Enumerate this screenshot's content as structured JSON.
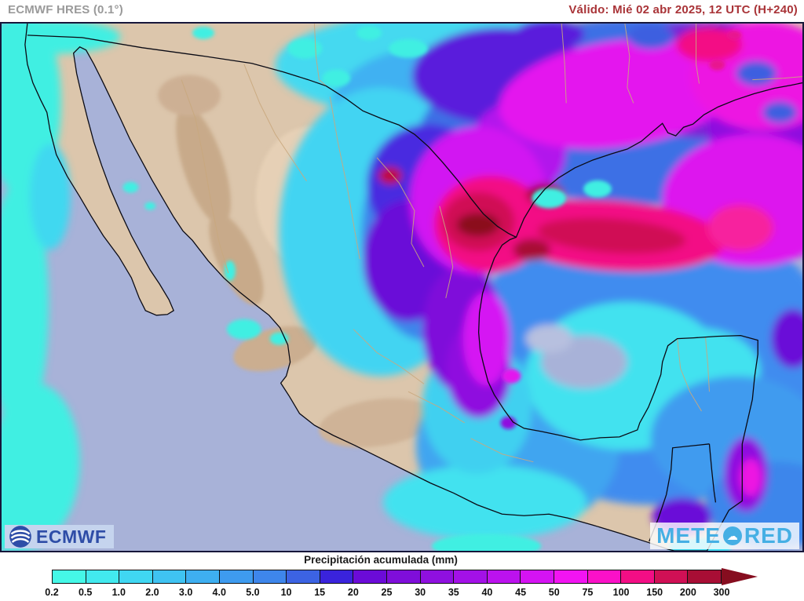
{
  "header": {
    "model": "ECMWF HRES (0.1°)",
    "model_color": "#9a9a9a",
    "valid": "Válido: Mié 02 abr 2025, 12 UTC (H+240)",
    "valid_color": "#a93438"
  },
  "map": {
    "ocean_color": "#a8b2d8",
    "land_color": "#dcc6ac",
    "coast_color": "#0a0a14",
    "state_line_color": "#c9a87e"
  },
  "legend": {
    "title": "Precipitación acumulada (mm)",
    "stops": [
      "0.2",
      "0.5",
      "1.0",
      "2.0",
      "3.0",
      "4.0",
      "5.0",
      "10",
      "15",
      "20",
      "25",
      "30",
      "35",
      "40",
      "45",
      "50",
      "75",
      "100",
      "150",
      "200",
      "300"
    ],
    "colors": [
      "#45f8e7",
      "#42e9ee",
      "#40d7f2",
      "#3fc3f2",
      "#3eaff1",
      "#3e9bef",
      "#3e86eb",
      "#3c63e3",
      "#3a23dc",
      "#6b0bd8",
      "#7f0eda",
      "#8f10df",
      "#a311e7",
      "#bc12ee",
      "#d513f3",
      "#f214f2",
      "#fb11c8",
      "#f30e85",
      "#d01055",
      "#a80e35"
    ],
    "arrow_color": "#860d1f"
  },
  "logos": {
    "ecmwf": "ECMWF",
    "meteored_left": "METE",
    "meteored_right": "RED"
  }
}
